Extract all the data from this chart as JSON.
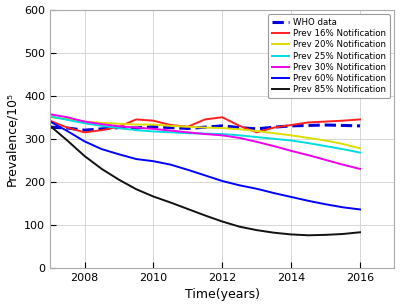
{
  "years": [
    2007,
    2007.5,
    2008,
    2008.5,
    2009,
    2009.5,
    2010,
    2010.5,
    2011,
    2011.5,
    2012,
    2012.5,
    2013,
    2013.5,
    2014,
    2014.5,
    2015,
    2015.5,
    2016
  ],
  "who_data": [
    327,
    325,
    320,
    323,
    326,
    325,
    328,
    326,
    324,
    327,
    330,
    326,
    323,
    327,
    330,
    331,
    332,
    331,
    330
  ],
  "prev_16": [
    342,
    326,
    315,
    320,
    328,
    345,
    342,
    332,
    328,
    345,
    350,
    330,
    315,
    326,
    332,
    338,
    340,
    342,
    345
  ],
  "prev_20": [
    350,
    346,
    340,
    337,
    335,
    333,
    333,
    330,
    328,
    326,
    325,
    322,
    318,
    313,
    308,
    302,
    296,
    288,
    278
  ],
  "prev_25": [
    352,
    344,
    336,
    330,
    325,
    320,
    317,
    315,
    313,
    312,
    311,
    308,
    304,
    300,
    296,
    290,
    283,
    276,
    268
  ],
  "prev_30": [
    357,
    350,
    340,
    334,
    329,
    326,
    323,
    319,
    315,
    311,
    308,
    302,
    293,
    283,
    272,
    262,
    251,
    240,
    230
  ],
  "prev_60": [
    340,
    318,
    294,
    276,
    264,
    253,
    248,
    240,
    228,
    215,
    202,
    192,
    184,
    174,
    165,
    156,
    148,
    141,
    136
  ],
  "prev_85": [
    330,
    296,
    260,
    230,
    205,
    183,
    166,
    152,
    137,
    122,
    108,
    96,
    88,
    82,
    78,
    76,
    77,
    79,
    83
  ],
  "who_color": "#0000dd",
  "prev_16_color": "#ff2020",
  "prev_20_color": "#dddd00",
  "prev_25_color": "#00dddd",
  "prev_30_color": "#ee00ee",
  "prev_60_color": "#0000ff",
  "prev_85_color": "#111111",
  "xlabel": "Time(years)",
  "ylabel": "Prevalence/10⁵",
  "xlim": [
    2007,
    2017
  ],
  "ylim": [
    0,
    600
  ],
  "yticks": [
    0,
    100,
    200,
    300,
    400,
    500,
    600
  ],
  "xticks": [
    2008,
    2010,
    2012,
    2014,
    2016
  ],
  "legend_labels": [
    "WHO data",
    "Prev 16% Notification",
    "Prev 20% Notification",
    "Prev 25% Notification",
    "Prev 30% Notification",
    "Prev 60% Notification",
    "Prev 85% Notification"
  ]
}
